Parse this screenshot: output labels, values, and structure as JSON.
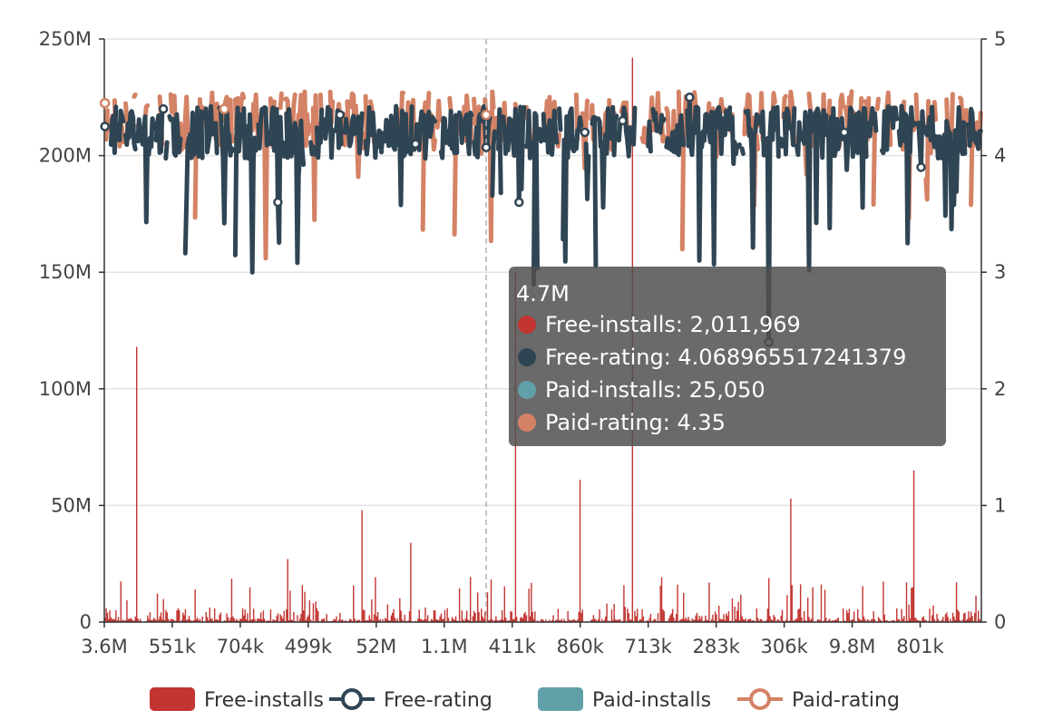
{
  "chart_data": {
    "type": "bar+line",
    "title": "",
    "x_tick_labels": [
      "3.6M",
      "551k",
      "704k",
      "499k",
      "52M",
      "1.1M",
      "411k",
      "860k",
      "713k",
      "283k",
      "306k",
      "9.8M",
      "801k"
    ],
    "y_left": {
      "min": 0,
      "max": 250000000,
      "ticks": [
        "0",
        "50M",
        "100M",
        "150M",
        "200M",
        "250M"
      ]
    },
    "y_right": {
      "min": 0,
      "max": 5,
      "ticks": [
        "0",
        "1",
        "2",
        "3",
        "4",
        "5"
      ]
    },
    "grid": true,
    "legend_position": "bottom-center",
    "series": [
      {
        "name": "Free-installs",
        "type": "bar",
        "axis": "left",
        "color": "#c23531"
      },
      {
        "name": "Free-rating",
        "type": "line",
        "axis": "right",
        "color": "#2f4554"
      },
      {
        "name": "Paid-installs",
        "type": "bar",
        "axis": "left",
        "color": "#61a0a8"
      },
      {
        "name": "Paid-rating",
        "type": "line",
        "axis": "right",
        "color": "#d48265"
      }
    ],
    "free_installs_spikes": [
      {
        "x_index": 26,
        "value": 118000000
      },
      {
        "x_index": 150,
        "value": 27000000
      },
      {
        "x_index": 211,
        "value": 48000000
      },
      {
        "x_index": 251,
        "value": 34000000
      },
      {
        "x_index": 337,
        "value": 150000000
      },
      {
        "x_index": 390,
        "value": 61000000
      },
      {
        "x_index": 433,
        "value": 242000000
      },
      {
        "x_index": 563,
        "value": 53000000
      },
      {
        "x_index": 664,
        "value": 65000000
      },
      {
        "x_index": 699,
        "value": 17000000
      }
    ],
    "free_rating_markers": [
      {
        "x_index": 0,
        "value": 4.25
      },
      {
        "x_index": 48,
        "value": 4.4
      },
      {
        "x_index": 142,
        "value": 3.6
      },
      {
        "x_index": 193,
        "value": 4.35
      },
      {
        "x_index": 255,
        "value": 4.1
      },
      {
        "x_index": 313,
        "value": 4.07
      },
      {
        "x_index": 340,
        "value": 3.6
      },
      {
        "x_index": 394,
        "value": 4.2
      },
      {
        "x_index": 425,
        "value": 4.3
      },
      {
        "x_index": 480,
        "value": 4.5
      },
      {
        "x_index": 545,
        "value": 2.4
      },
      {
        "x_index": 607,
        "value": 4.2
      },
      {
        "x_index": 670,
        "value": 3.9
      }
    ],
    "paid_rating_markers": [
      {
        "x_index": 0,
        "value": 4.45
      },
      {
        "x_index": 98,
        "value": 4.4
      },
      {
        "x_index": 313,
        "value": 4.35
      }
    ],
    "tooltip": {
      "category": "4.7M",
      "items": [
        {
          "name": "Free-installs",
          "value": "2,011,969"
        },
        {
          "name": "Free-rating",
          "value": "4.068965517241379"
        },
        {
          "name": "Paid-installs",
          "value": "25,050"
        },
        {
          "name": "Paid-rating",
          "value": "4.35"
        }
      ]
    }
  }
}
